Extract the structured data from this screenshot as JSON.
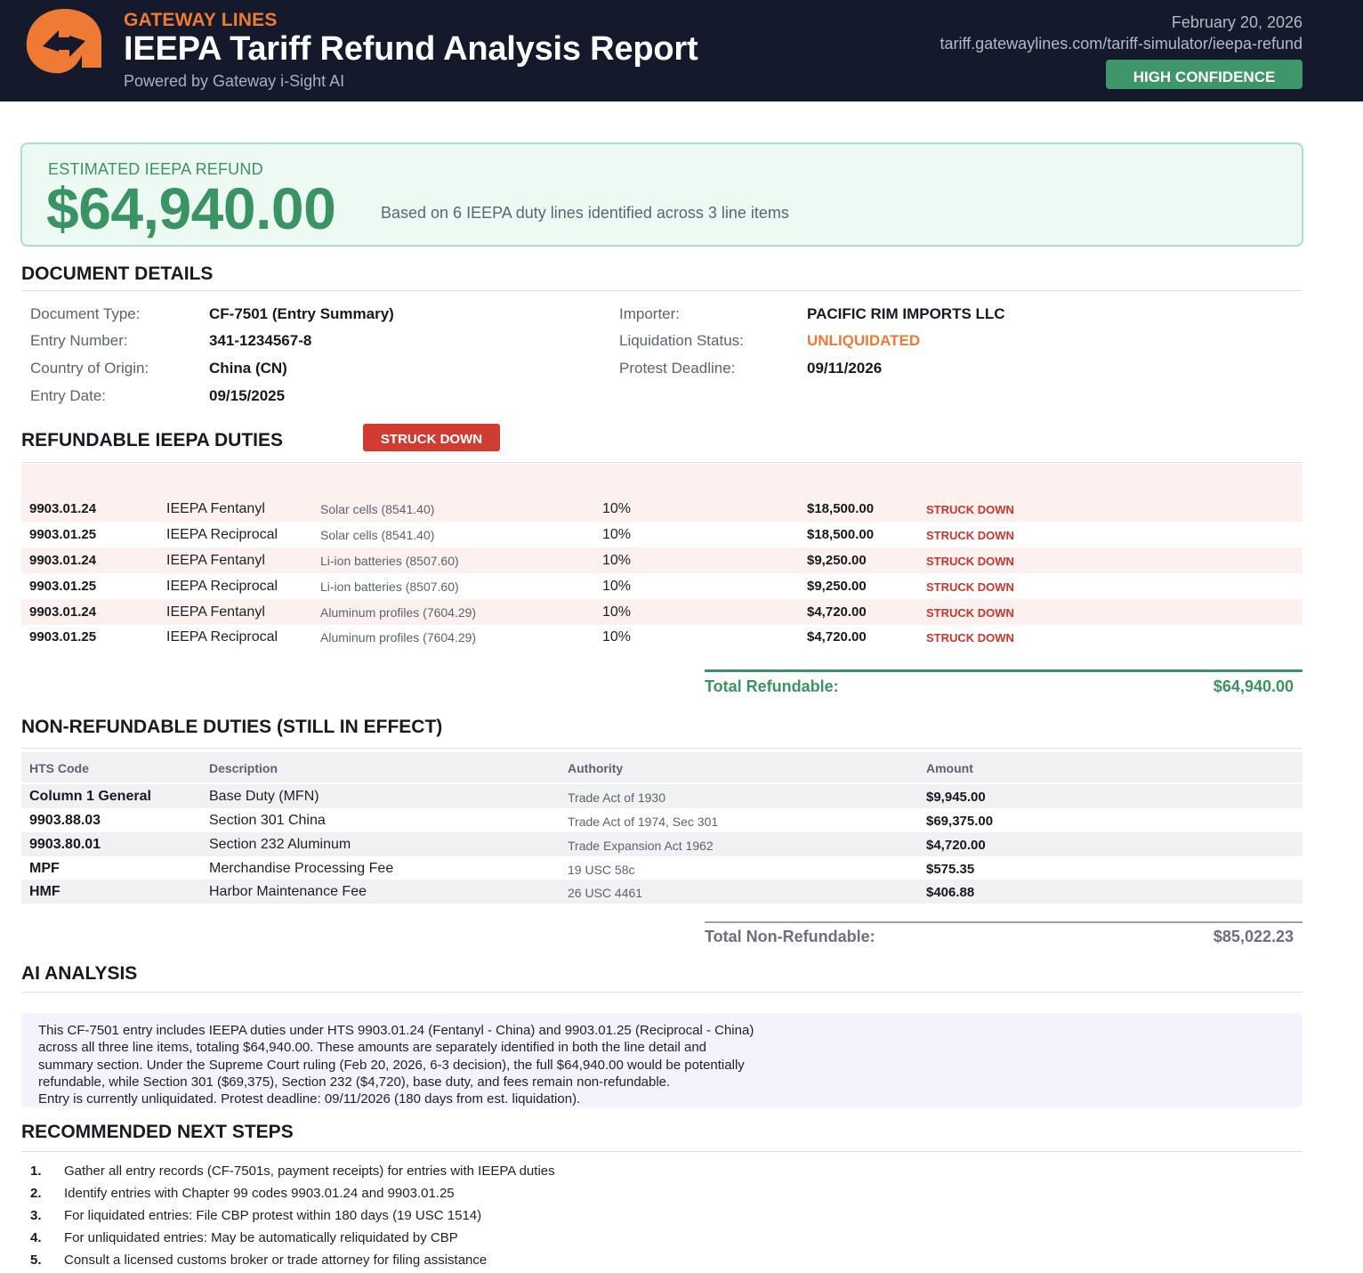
{
  "header": {
    "brand": "GATEWAY LINES",
    "title": "IEEPA Tariff Refund Analysis Report",
    "powered_by": "Powered by Gateway i-Sight AI",
    "date": "February 20, 2026",
    "url": "tariff.gatewaylines.com/tariff-simulator/ieepa-refund",
    "confidence_badge": "HIGH CONFIDENCE",
    "logo_icon": "sync-arrows-logo-icon",
    "colors": {
      "background": "#141a2b",
      "brand_orange": "#ee7a35",
      "confidence_green": "#3e9768"
    }
  },
  "refund": {
    "label": "ESTIMATED IEEPA REFUND",
    "amount": "$64,940.00",
    "note": "Based on 6 IEEPA duty lines identified across 3 line items"
  },
  "document_details": {
    "heading": "DOCUMENT DETAILS",
    "left": [
      {
        "label": "Document Type:",
        "value": "CF-7501 (Entry Summary)"
      },
      {
        "label": "Entry Number:",
        "value": "341-1234567-8"
      },
      {
        "label": "Country of Origin:",
        "value": "China (CN)"
      },
      {
        "label": "Entry Date:",
        "value": "09/15/2025"
      }
    ],
    "right": [
      {
        "label": "Importer:",
        "value": "PACIFIC RIM IMPORTS LLC"
      },
      {
        "label": "Liquidation Status:",
        "value": "UNLIQUIDATED"
      },
      {
        "label": "Protest Deadline:",
        "value": "09/11/2026"
      }
    ]
  },
  "refundable": {
    "heading": "REFUNDABLE IEEPA DUTIES",
    "badge": "STRUCK DOWN",
    "rows": [
      {
        "code": "9903.01.24",
        "type": "IEEPA Fentanyl",
        "desc": "Solar cells (8541.40)",
        "rate": "10%",
        "amount": "$18,500.00",
        "status": "STRUCK DOWN"
      },
      {
        "code": "9903.01.25",
        "type": "IEEPA Reciprocal",
        "desc": "Solar cells (8541.40)",
        "rate": "10%",
        "amount": "$18,500.00",
        "status": "STRUCK DOWN"
      },
      {
        "code": "9903.01.24",
        "type": "IEEPA Fentanyl",
        "desc": "Li-ion batteries (8507.60)",
        "rate": "10%",
        "amount": "$9,250.00",
        "status": "STRUCK DOWN"
      },
      {
        "code": "9903.01.25",
        "type": "IEEPA Reciprocal",
        "desc": "Li-ion batteries (8507.60)",
        "rate": "10%",
        "amount": "$9,250.00",
        "status": "STRUCK DOWN"
      },
      {
        "code": "9903.01.24",
        "type": "IEEPA Fentanyl",
        "desc": "Aluminum profiles (7604.29)",
        "rate": "10%",
        "amount": "$4,720.00",
        "status": "STRUCK DOWN"
      },
      {
        "code": "9903.01.25",
        "type": "IEEPA Reciprocal",
        "desc": "Aluminum profiles (7604.29)",
        "rate": "10%",
        "amount": "$4,720.00",
        "status": "STRUCK DOWN"
      }
    ],
    "total_label": "Total Refundable:",
    "total_value": "$64,940.00"
  },
  "non_refundable": {
    "heading": "NON-REFUNDABLE DUTIES (STILL IN EFFECT)",
    "columns": [
      "HTS Code",
      "Description",
      "Authority",
      "Amount"
    ],
    "rows": [
      {
        "code": "Column 1 General",
        "desc": "Base Duty (MFN)",
        "authority": "Trade Act of 1930",
        "amount": "$9,945.00"
      },
      {
        "code": "9903.88.03",
        "desc": "Section 301 China",
        "authority": "Trade Act of 1974, Sec 301",
        "amount": "$69,375.00"
      },
      {
        "code": "9903.80.01",
        "desc": "Section 232 Aluminum",
        "authority": "Trade Expansion Act 1962",
        "amount": "$4,720.00"
      },
      {
        "code": "MPF",
        "desc": "Merchandise Processing Fee",
        "authority": "19 USC 58c",
        "amount": "$575.35"
      },
      {
        "code": "HMF",
        "desc": "Harbor Maintenance Fee",
        "authority": "26 USC 4461",
        "amount": "$406.88"
      }
    ],
    "total_label": "Total Non-Refundable:",
    "total_value": "$85,022.23"
  },
  "ai_analysis": {
    "heading": "AI ANALYSIS",
    "lines": [
      "This CF-7501 entry includes IEEPA duties under HTS 9903.01.24 (Fentanyl - China) and 9903.01.25 (Reciprocal - China)",
      "across all three line items, totaling $64,940.00. These amounts are separately identified in both the line detail and",
      "summary section. Under the Supreme Court ruling (Feb 20, 2026, 6-3 decision), the full $64,940.00 would be potentially",
      "refundable, while Section 301 ($69,375), Section 232 ($4,720), base duty, and fees remain non-refundable.",
      "Entry is currently unliquidated. Protest deadline: 09/11/2026 (180 days from est. liquidation)."
    ]
  },
  "next_steps": {
    "heading": "RECOMMENDED NEXT STEPS",
    "items": [
      {
        "num": "1.",
        "text": "Gather all entry records (CF-7501s, payment receipts) for entries with IEEPA duties"
      },
      {
        "num": "2.",
        "text": "Identify entries with Chapter 99 codes 9903.01.24 and 9903.01.25"
      },
      {
        "num": "3.",
        "text": "For liquidated entries: File CBP protest within 180 days (19 USC 1514)"
      },
      {
        "num": "4.",
        "text": "For unliquidated entries: May be automatically reliquidated by CBP"
      },
      {
        "num": "5.",
        "text": "Consult a licensed customs broker or trade attorney for filing assistance"
      }
    ]
  }
}
